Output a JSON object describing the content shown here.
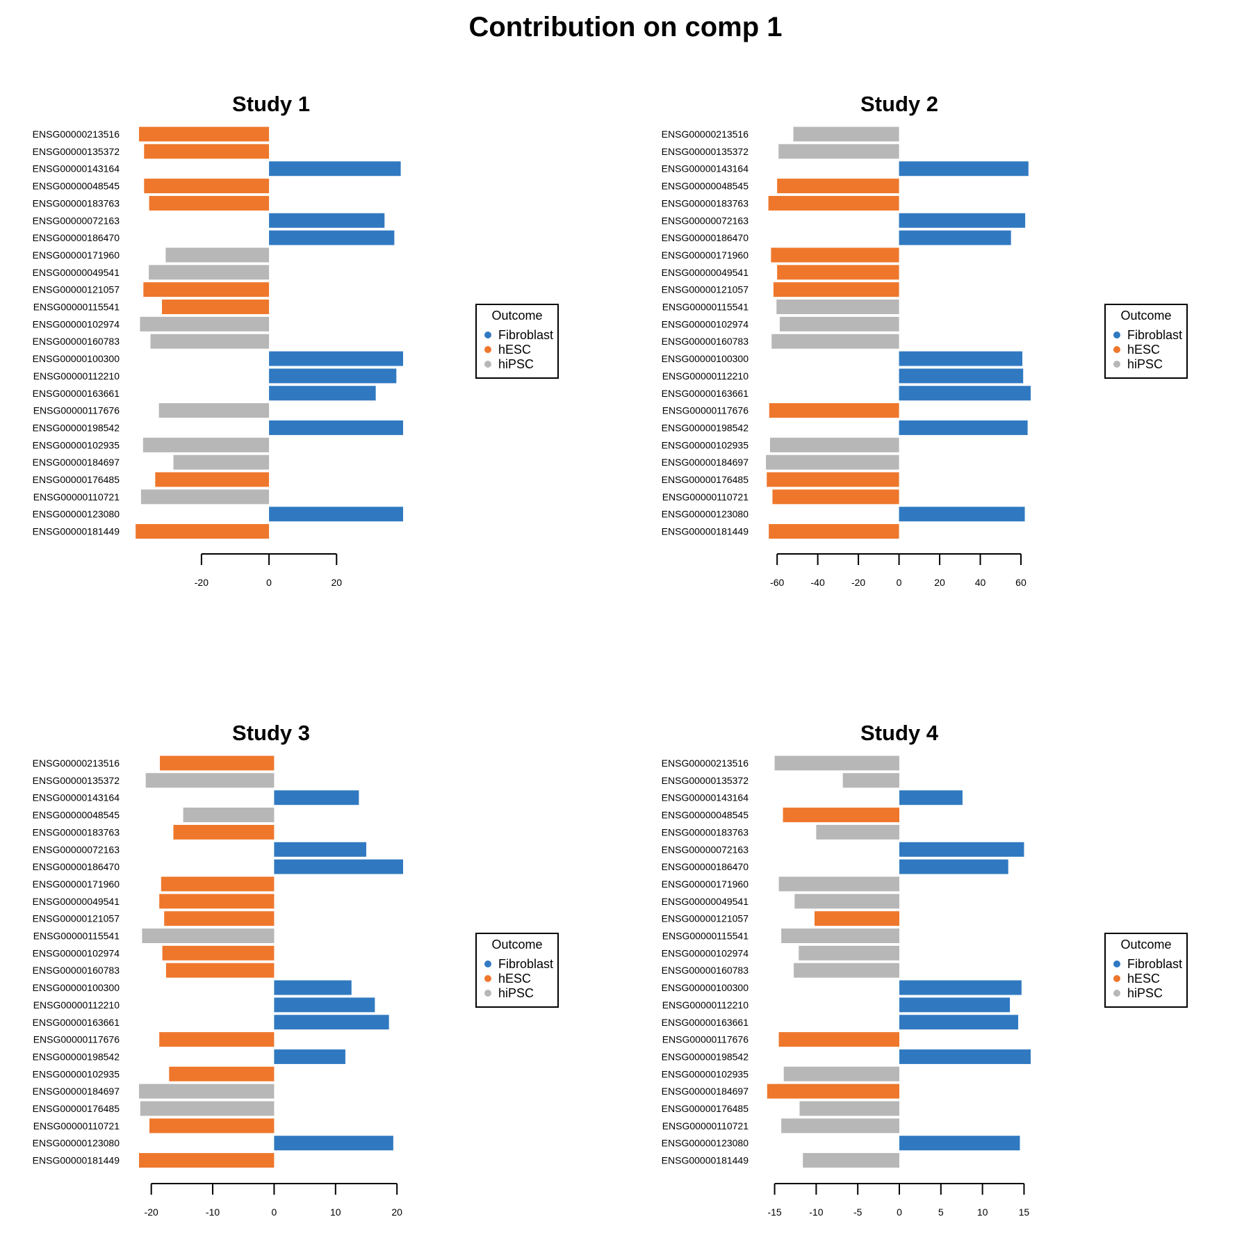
{
  "title": "Contribution on comp 1",
  "colors": {
    "Fibroblast": "#3079c1",
    "hESC": "#ee772c",
    "hiPSC": "#b7b7b7"
  },
  "legend": {
    "title": "Outcome",
    "entries": [
      "Fibroblast",
      "hESC",
      "hiPSC"
    ]
  },
  "chart_data": [
    {
      "type": "bar",
      "orientation": "horizontal",
      "title": "Study 1",
      "xlim": [
        -38.5,
        39.7
      ],
      "ticks": [
        -20,
        0,
        20
      ],
      "categories": [
        "ENSG00000213516",
        "ENSG00000135372",
        "ENSG00000143164",
        "ENSG00000048545",
        "ENSG00000183763",
        "ENSG00000072163",
        "ENSG00000186470",
        "ENSG00000171960",
        "ENSG00000049541",
        "ENSG00000121057",
        "ENSG00000115541",
        "ENSG00000102974",
        "ENSG00000160783",
        "ENSG00000100300",
        "ENSG00000112210",
        "ENSG00000163661",
        "ENSG00000117676",
        "ENSG00000198542",
        "ENSG00000102935",
        "ENSG00000184697",
        "ENSG00000176485",
        "ENSG00000110721",
        "ENSG00000123080",
        "ENSG00000181449"
      ],
      "values": [
        -38.5,
        -37.0,
        39.0,
        -37.0,
        -35.5,
        34.2,
        37.1,
        -30.6,
        -35.6,
        -37.2,
        -31.7,
        -38.2,
        -35.1,
        39.7,
        37.7,
        31.6,
        -32.6,
        39.7,
        -37.3,
        -28.3,
        -33.7,
        -37.9,
        39.7,
        -39.5
      ],
      "groups": [
        "hESC",
        "hESC",
        "Fibroblast",
        "hESC",
        "hESC",
        "Fibroblast",
        "Fibroblast",
        "hiPSC",
        "hiPSC",
        "hESC",
        "hESC",
        "hiPSC",
        "hiPSC",
        "Fibroblast",
        "Fibroblast",
        "Fibroblast",
        "hiPSC",
        "Fibroblast",
        "hiPSC",
        "hiPSC",
        "hESC",
        "hiPSC",
        "Fibroblast",
        "hESC"
      ]
    },
    {
      "type": "bar",
      "orientation": "horizontal",
      "title": "Study 2",
      "xlim": [
        -64.5,
        64.8
      ],
      "ticks": [
        -60,
        -40,
        -20,
        0,
        20,
        40,
        60
      ],
      "categories": [
        "ENSG00000213516",
        "ENSG00000135372",
        "ENSG00000143164",
        "ENSG00000048545",
        "ENSG00000183763",
        "ENSG00000072163",
        "ENSG00000186470",
        "ENSG00000171960",
        "ENSG00000049541",
        "ENSG00000121057",
        "ENSG00000115541",
        "ENSG00000102974",
        "ENSG00000160783",
        "ENSG00000100300",
        "ENSG00000112210",
        "ENSG00000163661",
        "ENSG00000117676",
        "ENSG00000198542",
        "ENSG00000102935",
        "ENSG00000184697",
        "ENSG00000176485",
        "ENSG00000110721",
        "ENSG00000123080",
        "ENSG00000181449"
      ],
      "values": [
        -52.0,
        -59.3,
        63.7,
        -60.0,
        -64.3,
        62.1,
        55.1,
        -63.0,
        -60.0,
        -61.8,
        -60.3,
        -58.7,
        -62.7,
        60.7,
        61.1,
        64.8,
        -63.9,
        63.3,
        -63.5,
        -65.5,
        -65.1,
        -62.3,
        61.9,
        -64.1
      ],
      "groups": [
        "hiPSC",
        "hiPSC",
        "Fibroblast",
        "hESC",
        "hESC",
        "Fibroblast",
        "Fibroblast",
        "hESC",
        "hESC",
        "hESC",
        "hiPSC",
        "hiPSC",
        "hiPSC",
        "Fibroblast",
        "Fibroblast",
        "Fibroblast",
        "hESC",
        "Fibroblast",
        "hiPSC",
        "hiPSC",
        "hESC",
        "hESC",
        "Fibroblast",
        "hESC"
      ]
    },
    {
      "type": "bar",
      "orientation": "horizontal",
      "title": "Study 3",
      "xlim": [
        -22,
        21
      ],
      "ticks": [
        -20,
        -10,
        0,
        10,
        20
      ],
      "categories": [
        "ENSG00000213516",
        "ENSG00000135372",
        "ENSG00000143164",
        "ENSG00000048545",
        "ENSG00000183763",
        "ENSG00000072163",
        "ENSG00000186470",
        "ENSG00000171960",
        "ENSG00000049541",
        "ENSG00000121057",
        "ENSG00000115541",
        "ENSG00000102974",
        "ENSG00000160783",
        "ENSG00000100300",
        "ENSG00000112210",
        "ENSG00000163661",
        "ENSG00000117676",
        "ENSG00000198542",
        "ENSG00000102935",
        "ENSG00000184697",
        "ENSG00000176485",
        "ENSG00000110721",
        "ENSG00000123080",
        "ENSG00000181449"
      ],
      "values": [
        -18.6,
        -20.9,
        13.8,
        -14.8,
        -16.4,
        15.0,
        21.0,
        -18.4,
        -18.7,
        -17.9,
        -21.5,
        -18.2,
        -17.6,
        12.6,
        16.4,
        18.7,
        -18.7,
        11.6,
        -17.1,
        -22.0,
        -21.8,
        -20.3,
        19.4,
        -22.0
      ],
      "groups": [
        "hESC",
        "hiPSC",
        "Fibroblast",
        "hiPSC",
        "hESC",
        "Fibroblast",
        "Fibroblast",
        "hESC",
        "hESC",
        "hESC",
        "hiPSC",
        "hESC",
        "hESC",
        "Fibroblast",
        "Fibroblast",
        "Fibroblast",
        "hESC",
        "Fibroblast",
        "hESC",
        "hiPSC",
        "hiPSC",
        "hESC",
        "Fibroblast",
        "hESC"
      ]
    },
    {
      "type": "bar",
      "orientation": "horizontal",
      "title": "Study 4",
      "xlim": [
        -15.8,
        15.8
      ],
      "ticks": [
        -15,
        -10,
        -5,
        0,
        5,
        10,
        15
      ],
      "categories": [
        "ENSG00000213516",
        "ENSG00000135372",
        "ENSG00000143164",
        "ENSG00000048545",
        "ENSG00000183763",
        "ENSG00000072163",
        "ENSG00000186470",
        "ENSG00000171960",
        "ENSG00000049541",
        "ENSG00000121057",
        "ENSG00000115541",
        "ENSG00000102974",
        "ENSG00000160783",
        "ENSG00000100300",
        "ENSG00000112210",
        "ENSG00000163661",
        "ENSG00000117676",
        "ENSG00000198542",
        "ENSG00000102935",
        "ENSG00000184697",
        "ENSG00000176485",
        "ENSG00000110721",
        "ENSG00000123080",
        "ENSG00000181449"
      ],
      "values": [
        -15.0,
        -6.8,
        7.6,
        -14.0,
        -10.0,
        15.0,
        13.1,
        -14.5,
        -12.6,
        -10.2,
        -14.2,
        -12.1,
        -12.7,
        14.7,
        13.3,
        14.3,
        -14.5,
        15.8,
        -13.9,
        -15.9,
        -12.0,
        -14.2,
        14.5,
        -11.6
      ],
      "groups": [
        "hiPSC",
        "hiPSC",
        "Fibroblast",
        "hESC",
        "hiPSC",
        "Fibroblast",
        "Fibroblast",
        "hiPSC",
        "hiPSC",
        "hESC",
        "hiPSC",
        "hiPSC",
        "hiPSC",
        "Fibroblast",
        "Fibroblast",
        "Fibroblast",
        "hESC",
        "Fibroblast",
        "hiPSC",
        "hESC",
        "hiPSC",
        "hiPSC",
        "Fibroblast",
        "hiPSC"
      ]
    }
  ]
}
